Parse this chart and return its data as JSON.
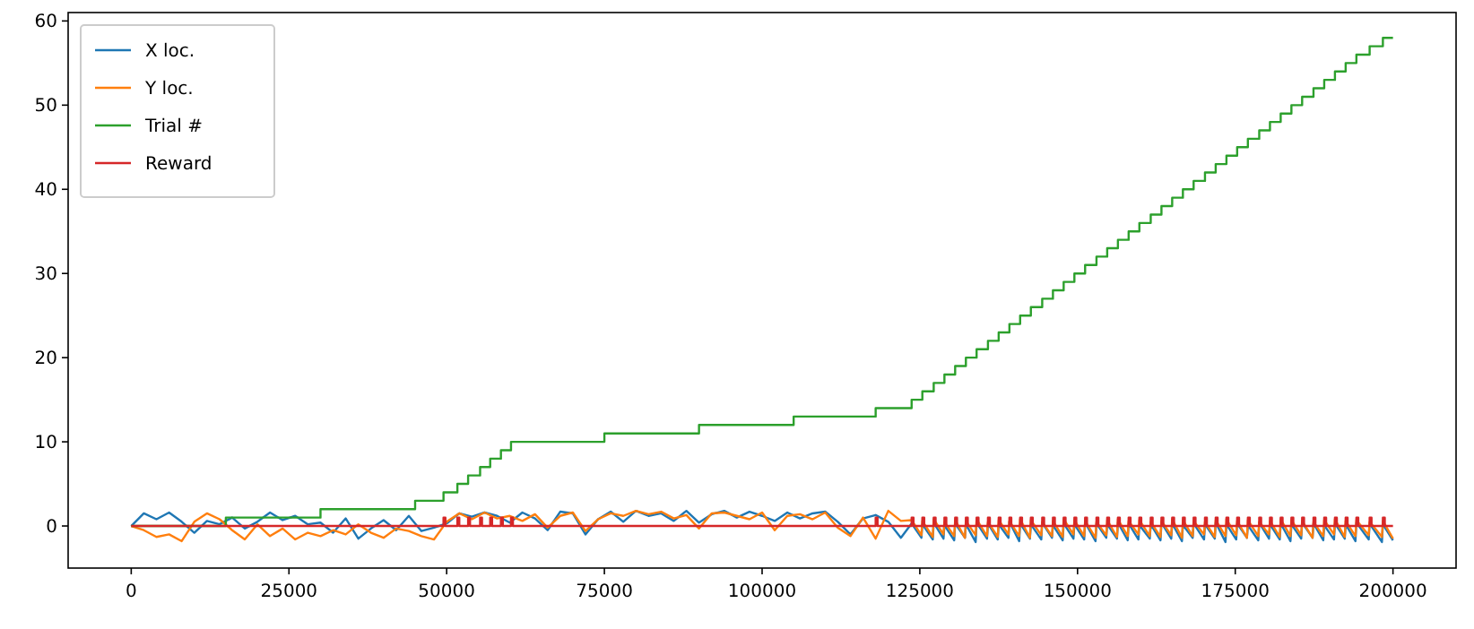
{
  "chart_data": {
    "type": "line",
    "legend": "top left",
    "xlim": [
      -10000,
      210000
    ],
    "ylim": [
      -5,
      61
    ],
    "xticks": [
      0,
      25000,
      50000,
      75000,
      100000,
      125000,
      150000,
      175000,
      200000
    ],
    "yticks": [
      0,
      10,
      20,
      30,
      40,
      50,
      60
    ],
    "x": [
      0,
      2000,
      4000,
      6000,
      8000,
      10000,
      12000,
      14000,
      16000,
      18000,
      20000,
      22000,
      24000,
      26000,
      28000,
      30000,
      32000,
      34000,
      36000,
      38000,
      40000,
      42000,
      44000,
      46000,
      48000,
      50000,
      52000,
      54000,
      56000,
      58000,
      60000,
      62000,
      64000,
      66000,
      68000,
      70000,
      72000,
      74000,
      76000,
      78000,
      80000,
      82000,
      84000,
      86000,
      88000,
      90000,
      92000,
      94000,
      96000,
      98000,
      100000,
      102000,
      104000,
      106000,
      108000,
      110000,
      112000,
      114000,
      116000,
      118000,
      120000,
      122000,
      123700,
      125250,
      125400,
      127050,
      127200,
      128750,
      128900,
      130450,
      130600,
      132150,
      132300,
      133850,
      134000,
      135650,
      135800,
      137350,
      137500,
      139050,
      139200,
      140750,
      140900,
      142450,
      142600,
      144250,
      144400,
      145950,
      146100,
      147650,
      147800,
      149350,
      149500,
      151050,
      151200,
      152850,
      153000,
      154550,
      154700,
      156250,
      156400,
      157950,
      158100,
      159650,
      159800,
      161450,
      161600,
      163150,
      163300,
      164850,
      165000,
      166550,
      166700,
      168250,
      168400,
      170050,
      170200,
      171750,
      171900,
      173450,
      173600,
      175150,
      175300,
      176850,
      177000,
      178650,
      178800,
      180350,
      180500,
      182050,
      182200,
      183750,
      183900,
      185450,
      185600,
      187250,
      187400,
      188950,
      189100,
      190650,
      190800,
      192350,
      192500,
      194050,
      194200,
      196150,
      196300,
      198250,
      198400,
      200000
    ],
    "series": [
      {
        "name": "X loc.",
        "color": "#1f77b4",
        "values": [
          0,
          1.5,
          0.8,
          1.6,
          0.5,
          -0.8,
          0.6,
          0.2,
          1.0,
          -0.3,
          0.5,
          1.6,
          0.7,
          1.2,
          0.2,
          0.4,
          -0.8,
          0.9,
          -1.5,
          -0.3,
          0.7,
          -0.5,
          1.2,
          -0.6,
          -0.2,
          0.3,
          1.5,
          1.1,
          1.6,
          1.2,
          0.4,
          1.6,
          0.9,
          -0.5,
          1.7,
          1.5,
          -1.0,
          0.8,
          1.7,
          0.5,
          1.8,
          1.2,
          1.5,
          0.6,
          1.8,
          0.4,
          1.4,
          1.8,
          1.0,
          1.7,
          1.2,
          0.6,
          1.6,
          0.9,
          1.5,
          1.7,
          0.5,
          -1.0,
          0.9,
          1.3,
          0.5,
          -1.4,
          0.3,
          -1.4,
          0.2,
          -1.6,
          0.4,
          -1.5,
          0.1,
          -1.7,
          0.3,
          -1.4,
          0.2,
          -1.9,
          0.4,
          -1.5,
          0.3,
          -1.6,
          0.2,
          -1.4,
          0.5,
          -1.8,
          0.3,
          -1.5,
          0.2,
          -1.6,
          0.4,
          -1.4,
          0.1,
          -1.7,
          0.3,
          -1.5,
          0.2,
          -1.6,
          0.4,
          -1.8,
          0.3,
          -1.4,
          0.2,
          -1.5,
          0.4,
          -1.7,
          0.3,
          -1.6,
          0.1,
          -1.5,
          0.2,
          -1.7,
          0.4,
          -1.5,
          0.3,
          -1.8,
          0.1,
          -1.4,
          0.3,
          -1.6,
          0.2,
          -1.5,
          0.4,
          -1.9,
          0.2,
          -1.6,
          0.3,
          -1.4,
          0.1,
          -1.7,
          0.4,
          -1.5,
          0.2,
          -1.6,
          0.3,
          -1.8,
          0.2,
          -1.5,
          0.4,
          -1.4,
          0.3,
          -1.7,
          0.1,
          -1.6,
          0.3,
          -1.5,
          0.2,
          -1.8,
          0.4,
          -1.6,
          0.3,
          -1.9,
          0.2,
          -1.7
        ]
      },
      {
        "name": "Y loc.",
        "color": "#ff7f0e",
        "values": [
          0,
          -0.5,
          -1.3,
          -1.0,
          -1.8,
          0.5,
          1.5,
          0.8,
          -0.5,
          -1.6,
          0.2,
          -1.2,
          -0.3,
          -1.6,
          -0.8,
          -1.2,
          -0.5,
          -1.0,
          0.2,
          -0.8,
          -1.4,
          -0.3,
          -0.6,
          -1.2,
          -1.6,
          0.5,
          1.5,
          0.8,
          1.6,
          0.9,
          1.2,
          0.6,
          1.4,
          -0.2,
          1.2,
          1.6,
          -0.6,
          0.8,
          1.5,
          1.2,
          1.8,
          1.4,
          1.7,
          0.9,
          1.3,
          -0.3,
          1.5,
          1.6,
          1.2,
          0.8,
          1.6,
          -0.5,
          1.2,
          1.4,
          0.8,
          1.6,
          -0.2,
          -1.2,
          1.0,
          -1.5,
          1.8,
          0.6,
          0.7,
          -1.1,
          0.6,
          -1.3,
          0.8,
          -1.0,
          0.5,
          -1.2,
          0.7,
          -1.4,
          0.6,
          -1.1,
          0.8,
          -1.2,
          0.5,
          -1.3,
          0.7,
          -1.0,
          0.6,
          -1.2,
          0.8,
          -1.4,
          0.7,
          -1.1,
          0.5,
          -1.2,
          0.6,
          -1.3,
          0.8,
          -1.0,
          0.7,
          -1.2,
          0.6,
          -1.4,
          0.5,
          -1.1,
          0.7,
          -1.3,
          0.8,
          -1.2,
          0.6,
          -1.0,
          0.7,
          -1.2,
          0.5,
          -1.3,
          0.6,
          -1.1,
          0.8,
          -1.4,
          0.7,
          -1.2,
          0.6,
          -1.0,
          0.5,
          -1.3,
          0.7,
          -1.2,
          0.8,
          -1.1,
          0.6,
          -1.4,
          0.7,
          -1.2,
          0.5,
          -1.0,
          0.6,
          -1.3,
          0.8,
          -1.2,
          0.7,
          -1.1,
          0.6,
          -1.4,
          0.5,
          -1.2,
          0.7,
          -1.0,
          0.8,
          -1.3,
          0.6,
          -1.2,
          0.7,
          -1.1,
          0.5,
          -1.3,
          0.6,
          -1.5
        ]
      },
      {
        "name": "Trial #",
        "color": "#2ca02c",
        "type": "step",
        "x": [
          0,
          15000,
          30000,
          45000,
          49500,
          51700,
          53400,
          55300,
          56900,
          58600,
          60200,
          75000,
          90000,
          105000,
          118000,
          123700,
          125400,
          127200,
          128900,
          130600,
          132300,
          134000,
          135800,
          137500,
          139200,
          140900,
          142600,
          144400,
          146100,
          147800,
          149500,
          151200,
          153000,
          154700,
          156400,
          158100,
          159800,
          161600,
          163300,
          165000,
          166700,
          168400,
          170200,
          171900,
          173600,
          175300,
          177000,
          178800,
          180500,
          182200,
          183900,
          185600,
          187400,
          189100,
          190800,
          192500,
          194200,
          196300,
          198400,
          200000
        ],
        "values": [
          0,
          1,
          2,
          3,
          4,
          5,
          6,
          7,
          8,
          9,
          10,
          11,
          12,
          13,
          14,
          15,
          16,
          17,
          18,
          19,
          20,
          21,
          22,
          23,
          24,
          25,
          26,
          27,
          28,
          29,
          30,
          31,
          32,
          33,
          34,
          35,
          36,
          37,
          38,
          39,
          40,
          41,
          42,
          43,
          44,
          45,
          46,
          47,
          48,
          49,
          50,
          51,
          52,
          53,
          54,
          55,
          56,
          57,
          58,
          58
        ]
      },
      {
        "name": "Reward",
        "color": "#d62728",
        "type": "step",
        "x": [
          0,
          49500,
          49800,
          51700,
          52000,
          53400,
          53700,
          55300,
          55600,
          56900,
          57200,
          58600,
          58900,
          60200,
          60500,
          118000,
          118300,
          123700,
          124000,
          125400,
          125700,
          127200,
          127500,
          128900,
          129200,
          130600,
          130900,
          132300,
          132600,
          134000,
          134300,
          135800,
          136100,
          137500,
          137800,
          139200,
          139500,
          140900,
          141200,
          142600,
          142900,
          144400,
          144700,
          146100,
          146400,
          147800,
          148100,
          149500,
          149800,
          151200,
          151500,
          153000,
          153300,
          154700,
          155000,
          156400,
          156700,
          158100,
          158400,
          159800,
          160100,
          161600,
          161900,
          163300,
          163600,
          165000,
          165300,
          166700,
          167000,
          168400,
          168700,
          170200,
          170500,
          171900,
          172200,
          173600,
          173900,
          175300,
          175600,
          177000,
          177300,
          178800,
          179100,
          180500,
          180800,
          182200,
          182500,
          183900,
          184200,
          185600,
          185900,
          187400,
          187700,
          189100,
          189400,
          190800,
          191100,
          192500,
          192800,
          194200,
          194500,
          196300,
          196600,
          198400,
          198700,
          200000
        ],
        "values": [
          0,
          1,
          0,
          1,
          0,
          1,
          0,
          1,
          0,
          1,
          0,
          1,
          0,
          1,
          0,
          1,
          0,
          1,
          0,
          1,
          0,
          1,
          0,
          1,
          0,
          1,
          0,
          1,
          0,
          1,
          0,
          1,
          0,
          1,
          0,
          1,
          0,
          1,
          0,
          1,
          0,
          1,
          0,
          1,
          0,
          1,
          0,
          1,
          0,
          1,
          0,
          1,
          0,
          1,
          0,
          1,
          0,
          1,
          0,
          1,
          0,
          1,
          0,
          1,
          0,
          1,
          0,
          1,
          0,
          1,
          0,
          1,
          0,
          1,
          0,
          1,
          0,
          1,
          0,
          1,
          0,
          1,
          0,
          1,
          0,
          1,
          0,
          1,
          0,
          1,
          0,
          1,
          0,
          1,
          0,
          1,
          0,
          1,
          0,
          1,
          0,
          1,
          0,
          1,
          0,
          0
        ]
      }
    ]
  }
}
